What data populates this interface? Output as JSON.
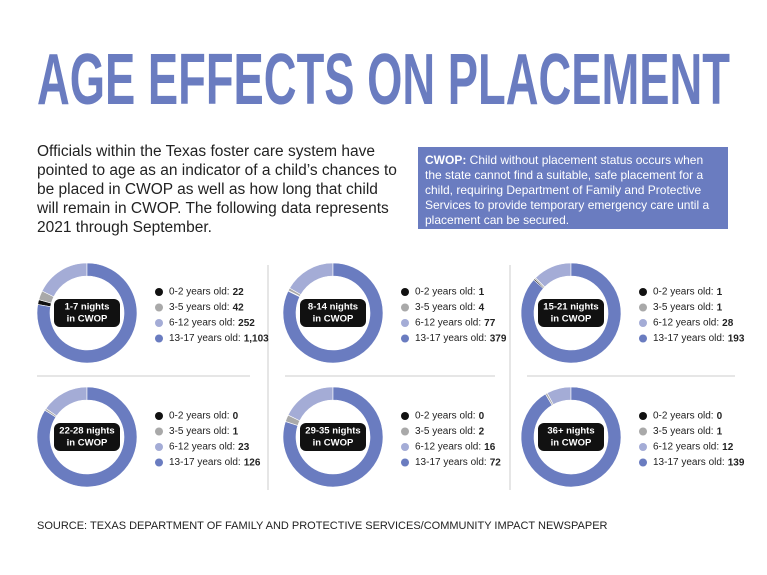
{
  "title": "AGE EFFECTS ON PLACEMENT",
  "intro": "Officials within the Texas foster care system have pointed to age as an indicator of a child’s chances to be placed in CWOP as well as how long that child will remain in CWOP. The following data represents 2021 through September.",
  "definition": {
    "term": "CWOP:",
    "text": "Child without placement status occurs when the state cannot find a suitable, safe placement for a child, requiring Department of Family and Protective Services to provide temporary emergency care until a placement can be secured."
  },
  "source": "SOURCE: TEXAS DEPARTMENT OF FAMILY AND PROTECTIVE SERVICES/COMMUNITY IMPACT NEWSPAPER",
  "chart_data": [
    {
      "type": "donut",
      "title": [
        "1-7 nights",
        "in CWOP"
      ],
      "categories": [
        "0-2 years old:",
        "3-5 years old:",
        "6-12 years old:",
        "13-17 years old:"
      ],
      "values": [
        22,
        42,
        252,
        1103
      ],
      "value_labels": [
        "22",
        "42",
        "252",
        "1,103"
      ],
      "colors": [
        "#111111",
        "#a9a9a9",
        "#a4acd6",
        "#6a7cc0"
      ]
    },
    {
      "type": "donut",
      "title": [
        "8-14 nights",
        "in CWOP"
      ],
      "categories": [
        "0-2 years old:",
        "3-5 years old:",
        "6-12 years old:",
        "13-17 years old:"
      ],
      "values": [
        1,
        4,
        77,
        379
      ],
      "colors": [
        "#111111",
        "#a9a9a9",
        "#a4acd6",
        "#6a7cc0"
      ]
    },
    {
      "type": "donut",
      "title": [
        "15-21 nights",
        "in CWOP"
      ],
      "categories": [
        "0-2 years old:",
        "3-5 years old:",
        "6-12 years old:",
        "13-17 years old:"
      ],
      "values": [
        1,
        1,
        28,
        193
      ],
      "colors": [
        "#111111",
        "#a9a9a9",
        "#a4acd6",
        "#6a7cc0"
      ]
    },
    {
      "type": "donut",
      "title": [
        "22-28 nights",
        "in CWOP"
      ],
      "categories": [
        "0-2 years old:",
        "3-5 years old:",
        "6-12 years old:",
        "13-17 years old:"
      ],
      "values": [
        0,
        1,
        23,
        126
      ],
      "colors": [
        "#111111",
        "#a9a9a9",
        "#a4acd6",
        "#6a7cc0"
      ]
    },
    {
      "type": "donut",
      "title": [
        "29-35 nights",
        "in CWOP"
      ],
      "categories": [
        "0-2 years old:",
        "3-5 years old:",
        "6-12 years old:",
        "13-17 years old:"
      ],
      "values": [
        0,
        2,
        16,
        72
      ],
      "colors": [
        "#111111",
        "#a9a9a9",
        "#a4acd6",
        "#6a7cc0"
      ]
    },
    {
      "type": "donut",
      "title": [
        "36+ nights",
        "in CWOP"
      ],
      "categories": [
        "0-2 years old:",
        "3-5 years old:",
        "6-12 years old:",
        "13-17 years old:"
      ],
      "values": [
        0,
        1,
        12,
        139
      ],
      "colors": [
        "#111111",
        "#a9a9a9",
        "#a4acd6",
        "#6a7cc0"
      ]
    }
  ]
}
